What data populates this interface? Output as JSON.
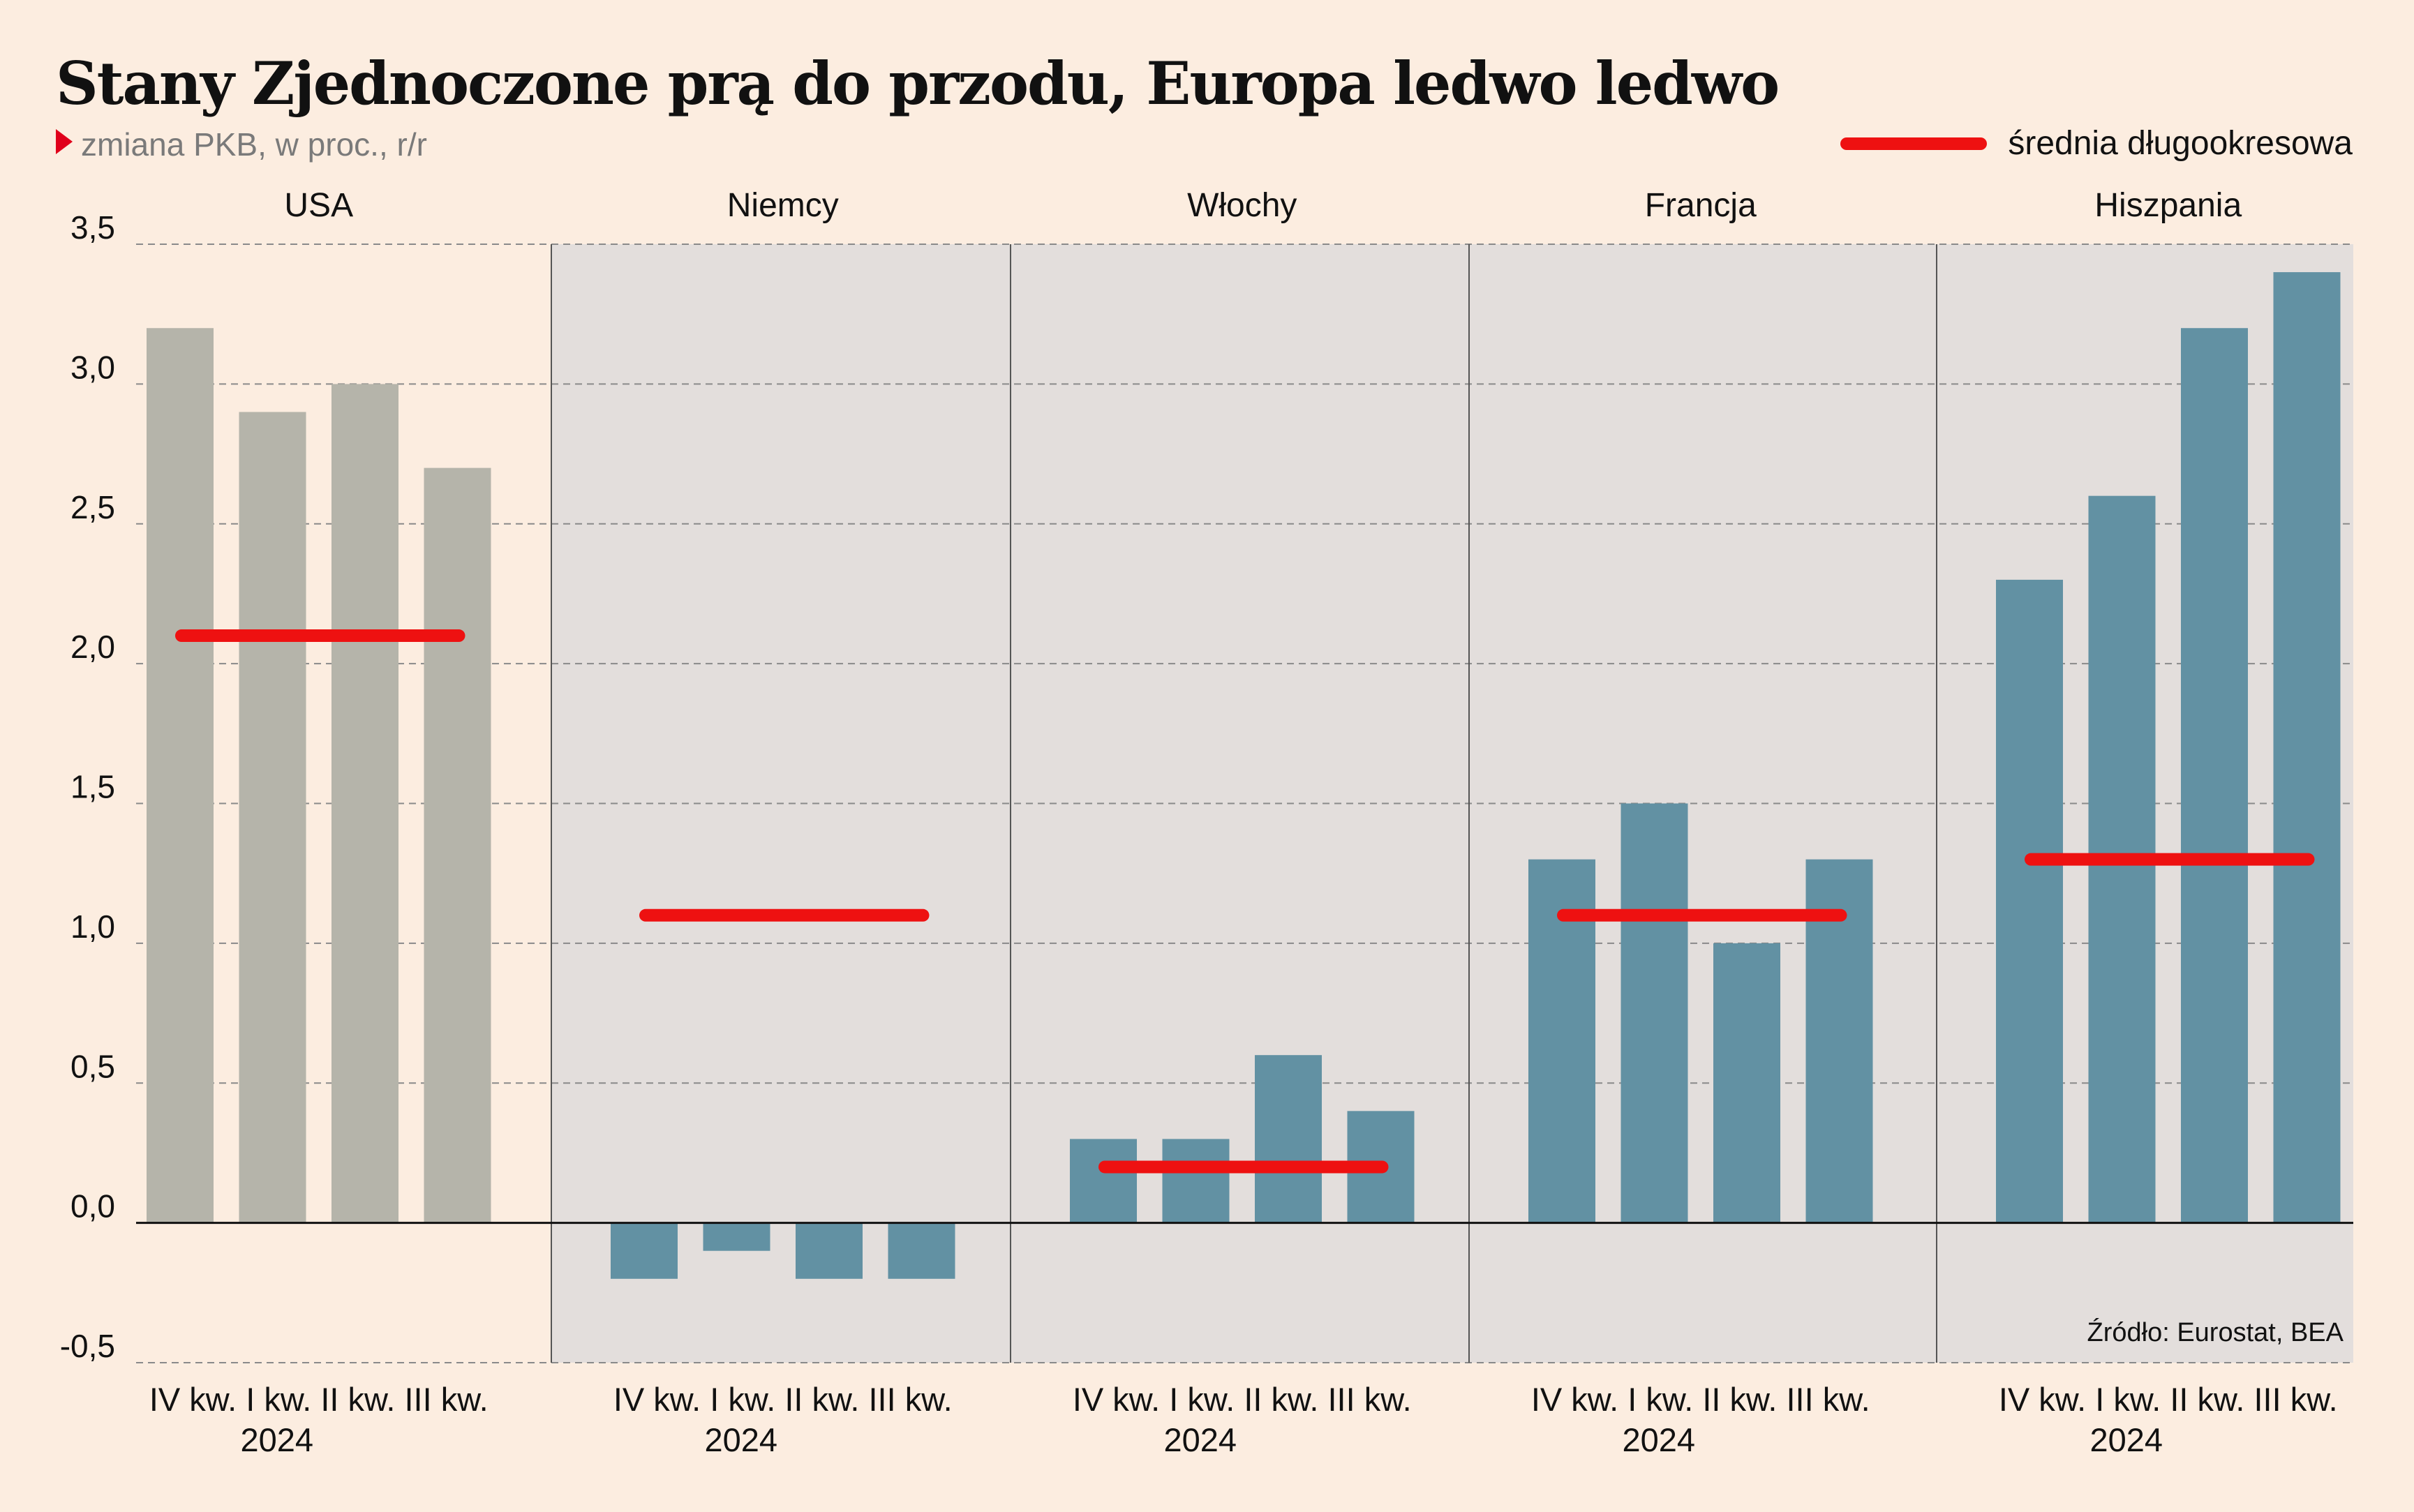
{
  "title": "Stany Zjednoczone prą do przodu, Europa ledwo ledwo",
  "subtitle": "zmiana PKB, w proc., r/r",
  "legend_label": "średnia długookresowa",
  "source": "Źródło: Eurostat, BEA",
  "colors": {
    "background": "#fcede0",
    "panel_shade": "#e3dedc",
    "usa_bar": "#b5b4aa",
    "europe_bar": "#6291a3",
    "average_line": "#ee1111",
    "grid": "#8a8a8a",
    "axis": "#111111",
    "separator": "#555555",
    "text": "#111111"
  },
  "chart_data": {
    "type": "bar",
    "ylim": [
      -0.5,
      3.5
    ],
    "yticks": [
      -0.5,
      0.0,
      0.5,
      1.0,
      1.5,
      2.0,
      2.5,
      3.0,
      3.5
    ],
    "ytick_labels": [
      "-0,5",
      "0,0",
      "0,5",
      "1,0",
      "1,5",
      "2,0",
      "2,5",
      "3,0",
      "3,5"
    ],
    "grid": true,
    "categories": [
      "IV kw.",
      "I kw.",
      "II kw.",
      "III kw."
    ],
    "year_label": "2024",
    "panels": [
      {
        "name": "USA",
        "shaded": false,
        "bar_color": "usa_bar",
        "values": [
          3.2,
          2.9,
          3.0,
          2.7
        ],
        "long_term_average": 2.1
      },
      {
        "name": "Niemcy",
        "shaded": true,
        "bar_color": "europe_bar",
        "values": [
          -0.2,
          -0.1,
          -0.2,
          -0.2
        ],
        "long_term_average": 1.1
      },
      {
        "name": "Włochy",
        "shaded": true,
        "bar_color": "europe_bar",
        "values": [
          0.3,
          0.3,
          0.6,
          0.4
        ],
        "long_term_average": 0.2
      },
      {
        "name": "Francja",
        "shaded": true,
        "bar_color": "europe_bar",
        "values": [
          1.3,
          1.5,
          1.0,
          1.3
        ],
        "long_term_average": 1.1
      },
      {
        "name": "Hiszpania",
        "shaded": true,
        "bar_color": "europe_bar",
        "values": [
          2.3,
          2.6,
          3.2,
          3.4
        ],
        "long_term_average": 1.3
      }
    ]
  }
}
